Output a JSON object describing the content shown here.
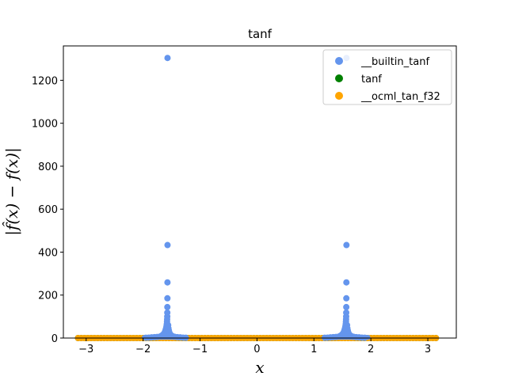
{
  "chart_data": {
    "type": "scatter",
    "title": "tanf",
    "xlabel": "x",
    "ylabel": "|f̂(x) − f(x)|",
    "xlim": [
      -3.4,
      3.5
    ],
    "ylim": [
      0,
      1360
    ],
    "xticks": [
      -3,
      -2,
      -1,
      0,
      1,
      2,
      3
    ],
    "xtick_labels": [
      "−3",
      "−2",
      "−1",
      "0",
      "1",
      "2",
      "3"
    ],
    "yticks": [
      0,
      200,
      400,
      600,
      800,
      1000,
      1200
    ],
    "ytick_labels": [
      "0",
      "200",
      "400",
      "600",
      "800",
      "1000",
      "1200"
    ],
    "grid": false,
    "legend_position": "top-right",
    "series": [
      {
        "name": "__builtin_tanf",
        "color": "#6495ed",
        "points": [
          [
            -1.571,
            1304
          ],
          [
            -1.571,
            433
          ],
          [
            -1.572,
            259
          ],
          [
            -1.573,
            185
          ],
          [
            -1.574,
            144
          ],
          [
            -1.575,
            118
          ],
          [
            -1.576,
            100
          ],
          [
            -1.578,
            87
          ],
          [
            -1.58,
            76
          ],
          [
            -1.583,
            66
          ],
          [
            -1.587,
            58
          ],
          [
            -1.592,
            50
          ],
          [
            -1.598,
            43
          ],
          [
            -1.605,
            37
          ],
          [
            -1.612,
            31
          ],
          [
            -1.62,
            26
          ],
          [
            -1.63,
            21
          ],
          [
            -1.645,
            17
          ],
          [
            -1.66,
            13
          ],
          [
            -1.68,
            10
          ],
          [
            -1.56,
            60
          ],
          [
            -1.555,
            45
          ],
          [
            -1.548,
            35
          ],
          [
            -1.54,
            27
          ],
          [
            -1.53,
            20
          ],
          [
            -1.515,
            15
          ],
          [
            -1.5,
            11
          ],
          [
            -1.48,
            8
          ],
          [
            -1.7,
            7
          ],
          [
            -1.45,
            6
          ],
          [
            -1.75,
            5
          ],
          [
            -1.4,
            4
          ],
          [
            -1.8,
            4
          ],
          [
            -1.35,
            3
          ],
          [
            -1.85,
            3
          ],
          [
            -1.3,
            2
          ],
          [
            -1.9,
            2
          ],
          [
            -1.25,
            1.5
          ],
          [
            -1.95,
            1.5
          ],
          [
            1.571,
            1304
          ],
          [
            1.571,
            433
          ],
          [
            1.57,
            259
          ],
          [
            1.569,
            185
          ],
          [
            1.568,
            144
          ],
          [
            1.567,
            118
          ],
          [
            1.566,
            100
          ],
          [
            1.564,
            87
          ],
          [
            1.562,
            76
          ],
          [
            1.559,
            66
          ],
          [
            1.555,
            58
          ],
          [
            1.55,
            50
          ],
          [
            1.544,
            43
          ],
          [
            1.537,
            37
          ],
          [
            1.53,
            31
          ],
          [
            1.522,
            26
          ],
          [
            1.512,
            21
          ],
          [
            1.497,
            17
          ],
          [
            1.482,
            13
          ],
          [
            1.462,
            10
          ],
          [
            1.582,
            60
          ],
          [
            1.587,
            45
          ],
          [
            1.594,
            35
          ],
          [
            1.602,
            27
          ],
          [
            1.612,
            20
          ],
          [
            1.627,
            15
          ],
          [
            1.642,
            11
          ],
          [
            1.662,
            8
          ],
          [
            1.44,
            7
          ],
          [
            1.692,
            6
          ],
          [
            1.39,
            5
          ],
          [
            1.742,
            4
          ],
          [
            1.34,
            4
          ],
          [
            1.792,
            3
          ],
          [
            1.29,
            3
          ],
          [
            1.842,
            2
          ],
          [
            1.24,
            2
          ],
          [
            1.892,
            1.5
          ],
          [
            1.19,
            1.5
          ]
        ]
      },
      {
        "name": "tanf",
        "color": "#008000",
        "x_range": [
          -3.1416,
          3.1416
        ],
        "y_value": 0
      },
      {
        "name": "__ocml_tan_f32",
        "color": "#ffa500",
        "x_range": [
          -3.1416,
          3.1416
        ],
        "y_value": 0
      }
    ]
  }
}
